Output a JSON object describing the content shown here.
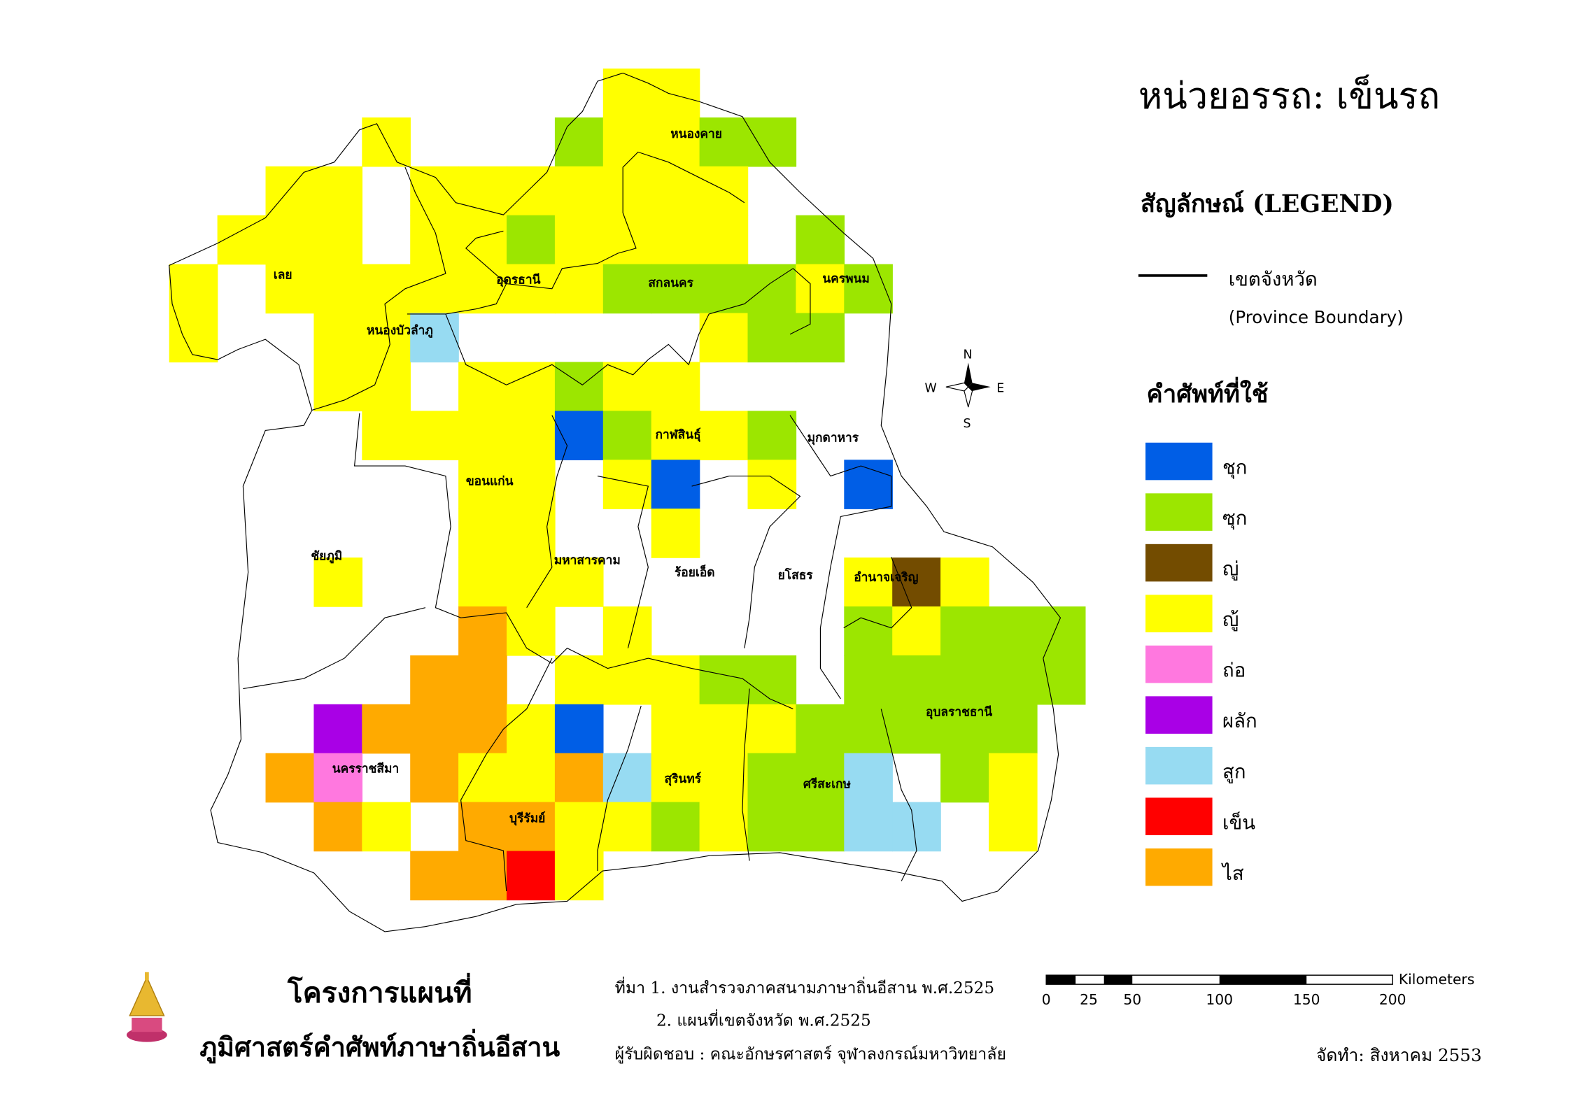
{
  "title": "หน่วยอรรถ: เข็นรถ",
  "legend": {
    "heading": "สัญลักษณ์ (LEGEND)",
    "boundary_label_th": "เขตจังหวัด",
    "boundary_label_en": "(Province Boundary)",
    "terms_heading": "คำศัพท์ที่ใช้",
    "items": [
      {
        "code": "1",
        "label": "ชุก",
        "color": "#005EE6"
      },
      {
        "code": "2",
        "label": "ซุก",
        "color": "#9CE600"
      },
      {
        "code": "3",
        "label": "ญู่",
        "color": "#734C00"
      },
      {
        "code": "4",
        "label": "ญู้",
        "color": "#FFFF00"
      },
      {
        "code": "5",
        "label": "ถ่อ",
        "color": "#FF78DF"
      },
      {
        "code": "6",
        "label": "ผลัก",
        "color": "#A900E6"
      },
      {
        "code": "7",
        "label": "สูก",
        "color": "#97DBF2"
      },
      {
        "code": "8",
        "label": "เข็น",
        "color": "#FF0000"
      },
      {
        "code": "9",
        "label": "ไส",
        "color": "#FFAA00"
      }
    ]
  },
  "compass": {
    "n": "N",
    "s": "S",
    "e": "E",
    "w": "W"
  },
  "provinces": [
    "เลย",
    "อุดรธานี",
    "หนองคาย",
    "สกลนคร",
    "นครพนม",
    "หนองบัวลำภู",
    "กาฬสินธุ์",
    "มุกดาหาร",
    "ขอนแก่น",
    "ชัยภูมิ",
    "มหาสารคาม",
    "ร้อยเอ็ด",
    "ยโสธร",
    "อำนาจเจริญ",
    "อุบลราชธานี",
    "นครราชสีมา",
    "สุรินทร์",
    "ศรีสะเกษ",
    "บุรีรัมย์"
  ],
  "grid": [
    ".........44........",
    "....4...24422......",
    "..44.4444444.......",
    ".444.4424444.2.....",
    "4.4444444222242....",
    "4..447.....422.....",
    "...44.44244........",
    "....444412442......",
    "......44.41.4.1....",
    "......44..4........",
    "...4..444.....434..",
    "......94.4....24222",
    ".....99.44422.22222",
    "...699941.44422222.",
    "..95.9449744227.24.",
    "...94.9944242277.4.",
    ".....9984.........."
  ],
  "footer": {
    "project_line1": "โครงการแผนที่",
    "project_line2": "ภูมิศาสตร์คำศัพท์ภาษาถิ่นอีสาน",
    "source1": "ที่มา 1. งานสำรวจภาคสนามภาษาถิ่นอีสาน พ.ศ.2525",
    "source2": "2. แผนที่เขตจังหวัด พ.ศ.2525",
    "responsible": "ผู้รับผิดชอบ : คณะอักษรศาสตร์ จุฬาลงกรณ์มหาวิทยาลัย",
    "prepared": "จัดทำ: สิงหาคม 2553"
  },
  "scalebar": {
    "unit": "Kilometers",
    "ticks": [
      "0",
      "25",
      "50",
      "100",
      "150",
      "200"
    ]
  }
}
